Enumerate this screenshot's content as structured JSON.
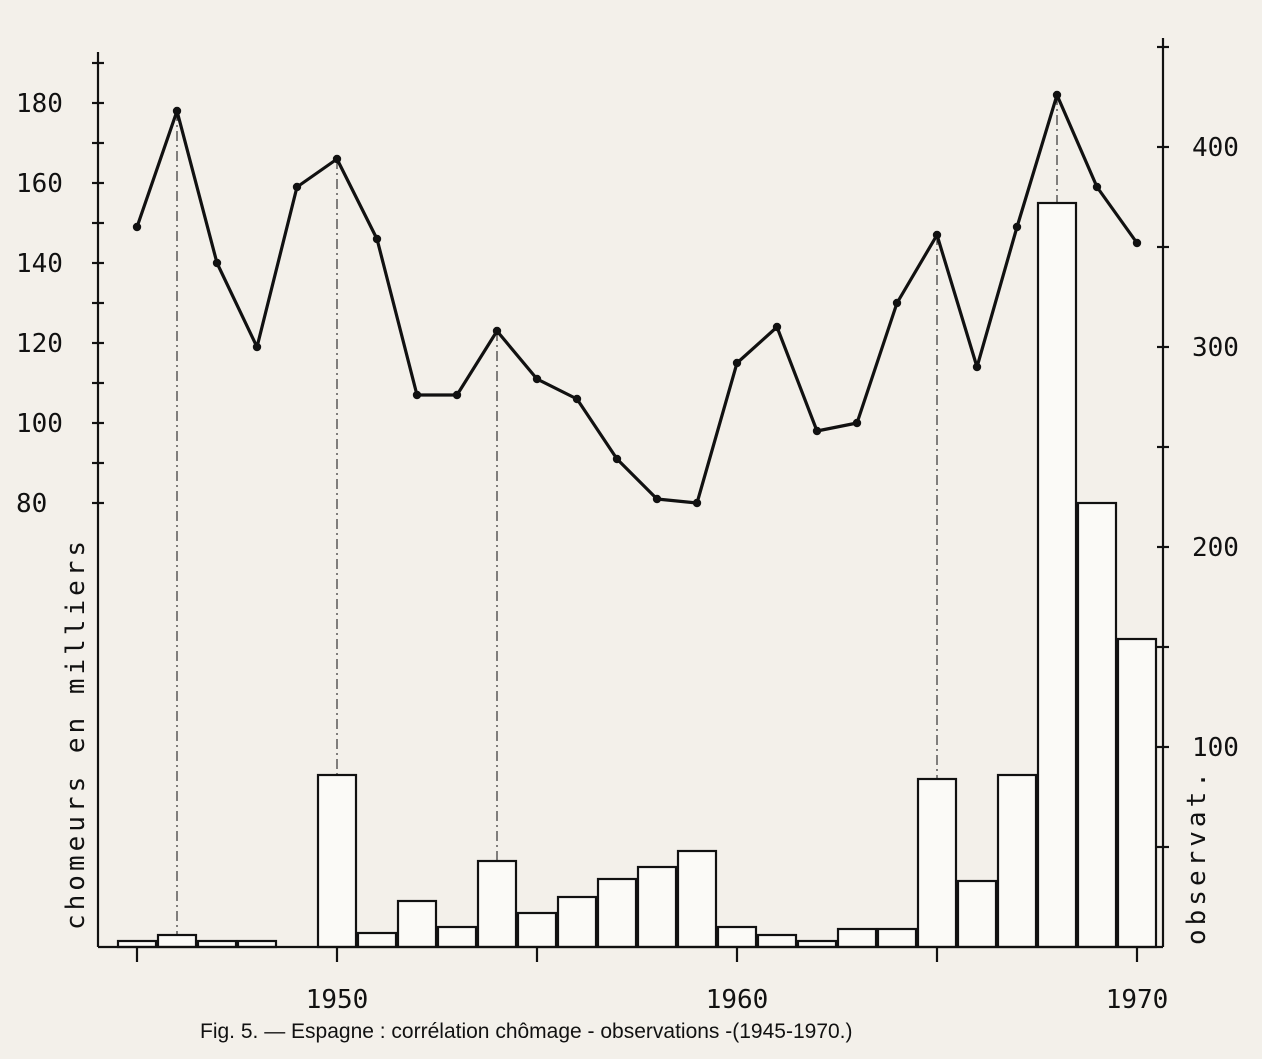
{
  "chart_data": {
    "type": "bar+line",
    "caption": "Fig. 5. — Espagne : corrélation chômage - observations -(1945-1970.)",
    "y_left_label": "chomeurs en milliers",
    "y_right_label": "observat.",
    "x_ticks": [
      "1950",
      "1960",
      "1970"
    ],
    "y_left_ticks": [
      "80",
      "100",
      "120",
      "140",
      "160",
      "180"
    ],
    "y_right_ticks": [
      "100",
      "200",
      "300",
      "400"
    ],
    "ylim_right": [
      0,
      400
    ],
    "x_range": [
      1945,
      1970
    ],
    "line_series": {
      "name": "chomeurs en milliers",
      "axis": "left",
      "x": [
        1945,
        1946,
        1947,
        1948,
        1949,
        1950,
        1951,
        1952,
        1953,
        1954,
        1955,
        1956,
        1957,
        1958,
        1959,
        1960,
        1961,
        1962,
        1963,
        1964,
        1965,
        1966,
        1967,
        1968,
        1969,
        1970
      ],
      "values": [
        149,
        178,
        140,
        119,
        159,
        166,
        146,
        107,
        107,
        123,
        111,
        106,
        91,
        81,
        80,
        115,
        124,
        98,
        100,
        130,
        147,
        114,
        149,
        182,
        159,
        145
      ]
    },
    "bar_series": {
      "name": "observat.",
      "axis": "right",
      "x": [
        1945,
        1946,
        1947,
        1948,
        1949,
        1950,
        1951,
        1952,
        1953,
        1954,
        1955,
        1956,
        1957,
        1958,
        1959,
        1960,
        1961,
        1962,
        1963,
        1964,
        1965,
        1966,
        1967,
        1968,
        1969,
        1970
      ],
      "values": [
        3,
        6,
        3,
        3,
        0,
        86,
        7,
        23,
        10,
        43,
        17,
        25,
        34,
        40,
        48,
        10,
        6,
        3,
        9,
        9,
        84,
        33,
        86,
        372,
        222,
        154
      ]
    },
    "highlighted_years": [
      1946,
      1950,
      1954,
      1965,
      1968
    ]
  }
}
